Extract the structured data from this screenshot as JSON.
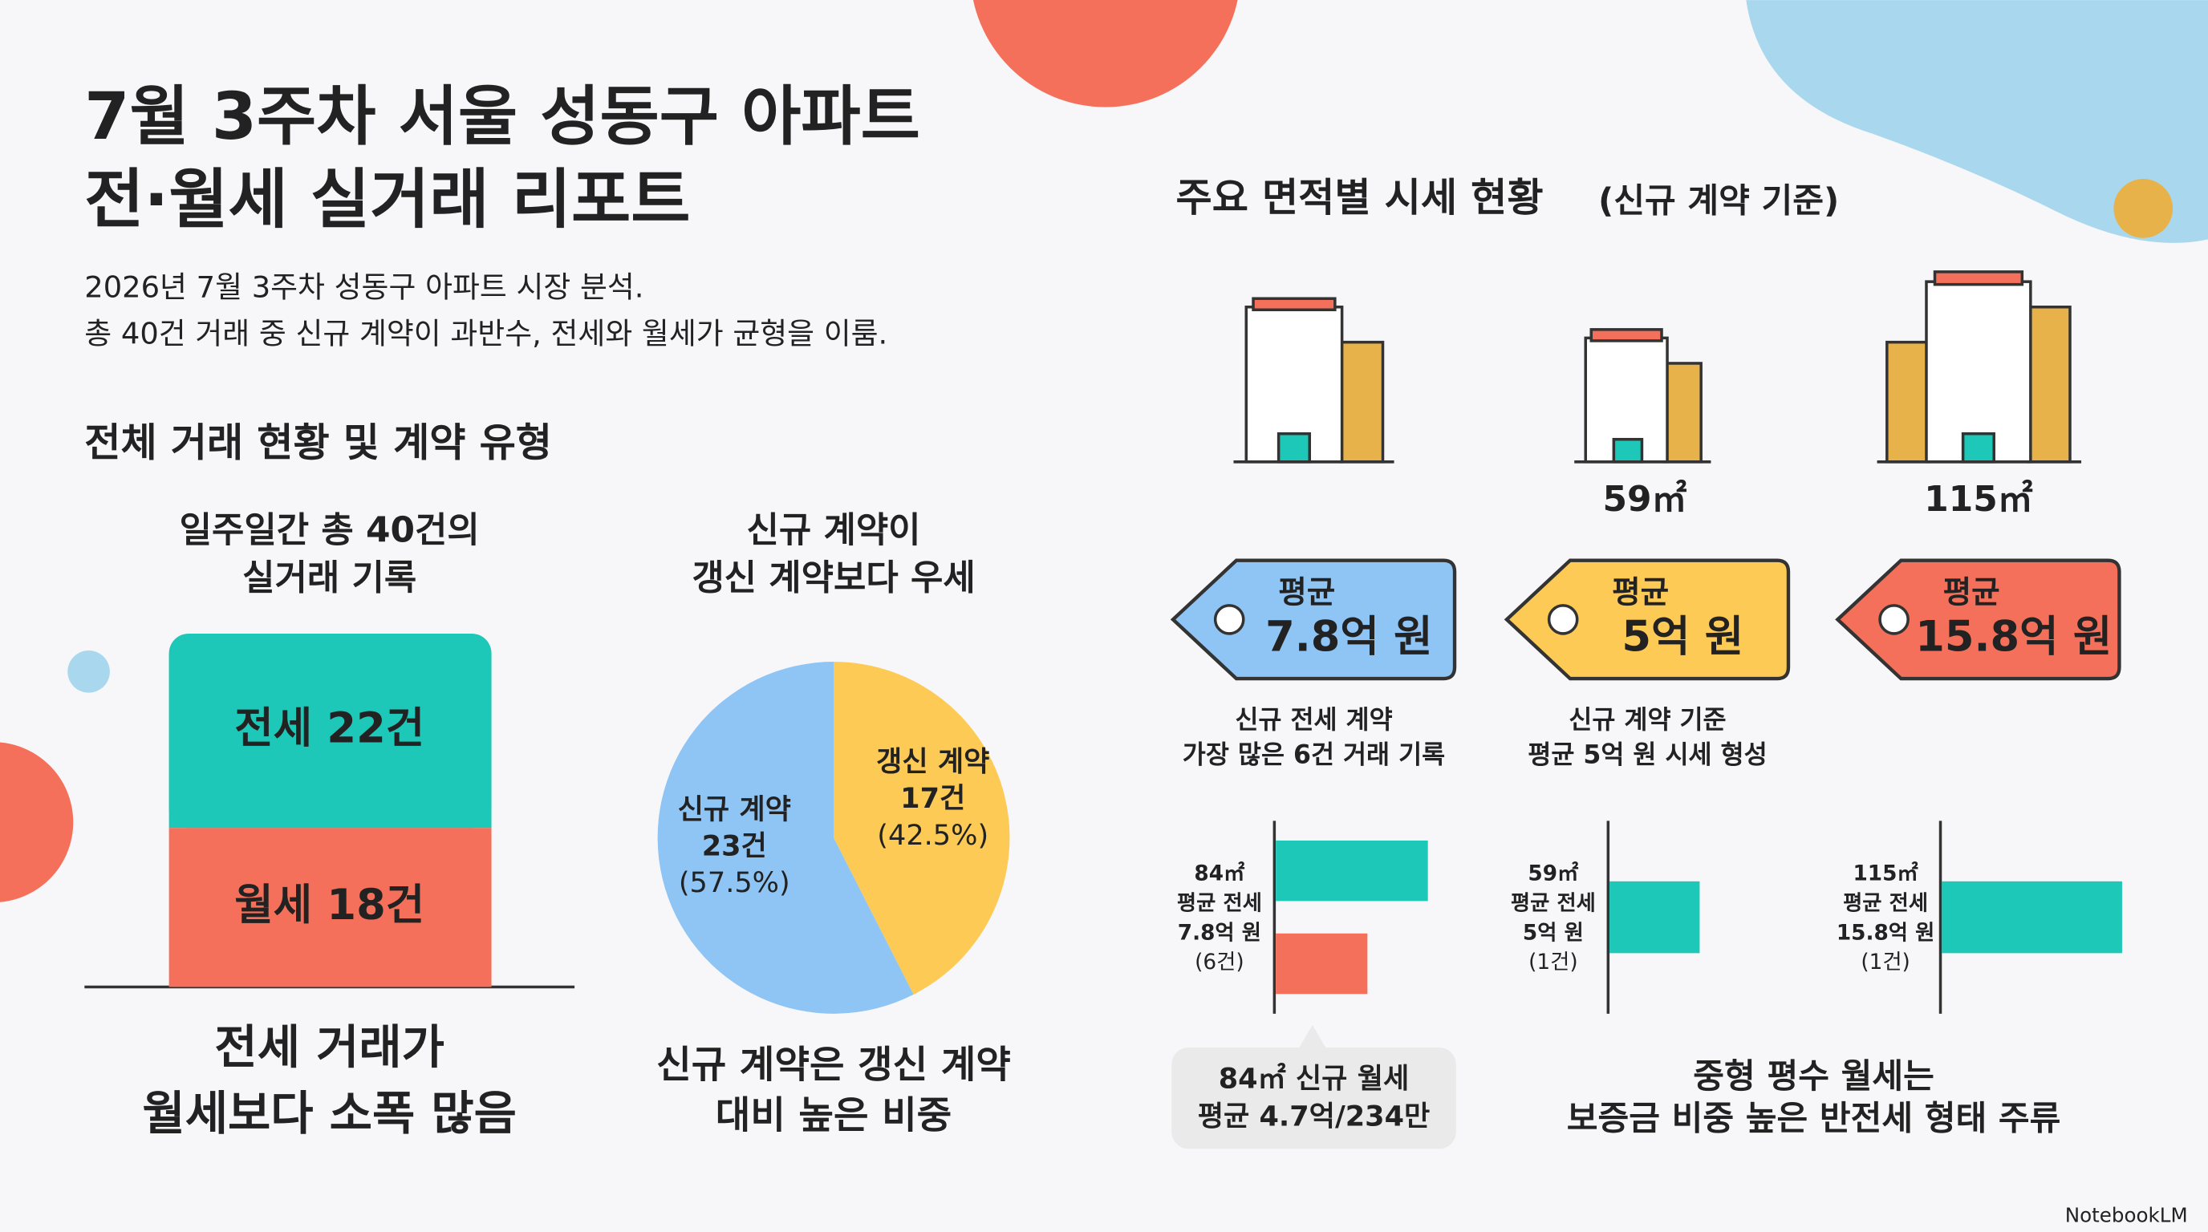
{
  "header": {
    "title": [
      "7월 3주차 서울 성동구 아파트",
      "전·월세 실거래 리포트"
    ],
    "subtitle": [
      "2026년 7월 3주차 성동구 아파트 시장 분석.",
      "총 40건 거래 중 신규 계약이 과반수, 전세와 월세가 균형을 이룸."
    ]
  },
  "overview": {
    "heading": "전체 거래 현황 및 계약 유형",
    "stacked": {
      "type": "stacked-bar",
      "caption": [
        "일주일간 총 40건의",
        "실거래 기록"
      ],
      "segments": [
        {
          "label": "전세 22건",
          "value": 22,
          "color": "#1ec8b8"
        },
        {
          "label": "월세 18건",
          "value": 18,
          "color": "#f4705a"
        }
      ],
      "note": [
        "전세 거래가",
        "월세보다 소폭 많음"
      ]
    },
    "pie": {
      "type": "pie",
      "caption": [
        "신규 계약이",
        "갱신 계약보다 우세"
      ],
      "slices": [
        {
          "label": [
            "갱신 계약",
            "17건",
            "(42.5%)"
          ],
          "value": 17,
          "color": "#fcca55"
        },
        {
          "label": [
            "신규 계약",
            "23건",
            "(57.5%)"
          ],
          "value": 23,
          "color": "#8ec5f5"
        }
      ],
      "note": [
        "신규 계약은 갱신 계약",
        "대비 높은 비중"
      ]
    }
  },
  "sizes": {
    "heading": "주요 면적별 시세 현황",
    "heading_note": "(신규 계약 기준)",
    "areas": [
      "59㎡",
      "115㎡"
    ],
    "tags": [
      {
        "line1": "평균",
        "line2": "7.8억 원",
        "color": "#8ec5f5",
        "desc": [
          "신규 전세 계약",
          "가장 많은 6건 거래 기록"
        ]
      },
      {
        "line1": "평균",
        "line2": "5억 원",
        "color": "#fcca55",
        "desc": [
          "신규 계약 기준",
          "평균 5억 원 시세 형성"
        ]
      },
      {
        "line1": "평균",
        "line2": "15.8억 원",
        "color": "#f4705a",
        "desc": []
      }
    ],
    "bars": [
      {
        "type": "bar",
        "label": [
          "84㎡",
          "평균 전세",
          "7.8억 원",
          "(6건)"
        ],
        "values": [
          7.8,
          4.7
        ],
        "colors": [
          "#1ec8b8",
          "#f4705a"
        ]
      },
      {
        "type": "bar",
        "label": [
          "59㎡",
          "평균 전세",
          "5억 원",
          "(1건)"
        ],
        "values": [
          5
        ],
        "colors": [
          "#1ec8b8"
        ]
      },
      {
        "type": "bar",
        "label": [
          "115㎡",
          "평균 전세",
          "15.8억 원",
          "(1건)"
        ],
        "values": [
          15.8
        ],
        "colors": [
          "#1ec8b8"
        ]
      }
    ],
    "callout": [
      "84㎡ 신규 월세",
      "평균 4.7억/234만"
    ],
    "footnote": [
      "중형 평수 월세는",
      "보증금 비중 높은 반전세 형태 주류"
    ]
  },
  "brand": "NotebookLM"
}
